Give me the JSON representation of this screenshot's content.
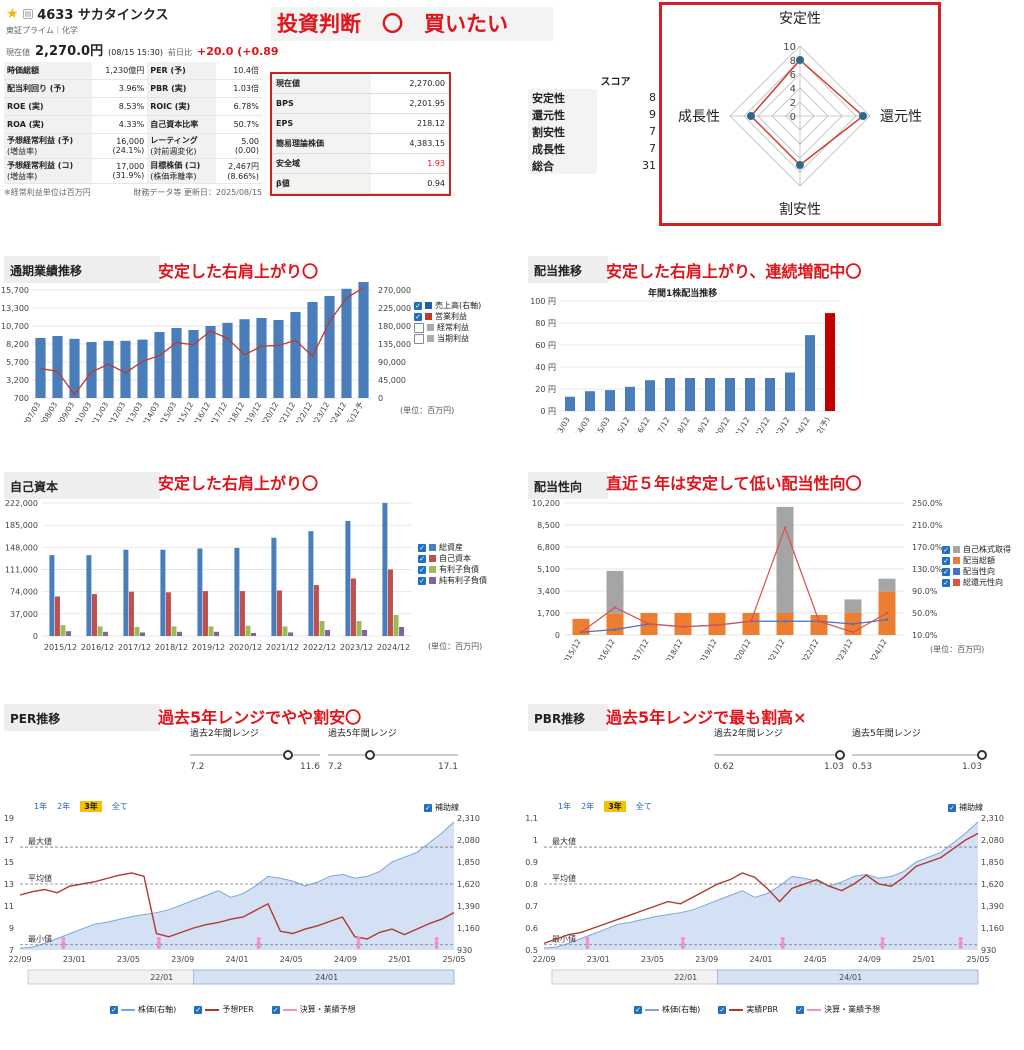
{
  "header": {
    "star_icon": "star-icon",
    "ticker_name": "4633 サカタインクス",
    "market": "東証プライム｜化学",
    "price_label": "現在値",
    "price": "2,270.0円",
    "time": "(08/15 15:30)",
    "change_label": "前日比",
    "change": "+20.0 (+0.89"
  },
  "metrics": {
    "rows": [
      {
        "k1": "時価総額",
        "s1": "",
        "v1": "1,230億円",
        "k2": "PER",
        "s2": "(予)",
        "v2": "10.4倍"
      },
      {
        "k1": "配当利回り",
        "s1": "(予)",
        "v1": "3.96%",
        "k2": "PBR",
        "s2": "(実)",
        "v2": "1.03倍"
      },
      {
        "k1": "ROE",
        "s1": "(実)",
        "v1": "8.53%",
        "k2": "ROIC",
        "s2": "(実)",
        "v2": "6.78%"
      },
      {
        "k1": "ROA",
        "s1": "(実)",
        "v1": "4.33%",
        "k2": "自己資本比率",
        "s2": "",
        "v2": "50.7%"
      },
      {
        "k1": "予想経常利益",
        "s1": "(予)",
        "sub1": "(増益率)",
        "v1": "16,000",
        "vv1": "(24.1%)",
        "k2": "レーティング",
        "sub2": "(対前週変化)",
        "v2": "5.00",
        "vv2": "(0.00)"
      },
      {
        "k1": "予想経常利益",
        "s1": "(コ)",
        "sub1": "(増益率)",
        "v1": "17,000",
        "vv1": "(31.9%)",
        "k2": "目標株価",
        "s2": "(コ)",
        "sub2": "(株価乖離率)",
        "v2": "2,467円",
        "vv2": "(8.66%)"
      }
    ],
    "note": "※経常利益単位は百万円",
    "updated": "財務データ等 更新日：2025/08/15"
  },
  "judgement": {
    "title": "投資判断　〇　買いたい"
  },
  "valuation": [
    {
      "k": "現在値",
      "v": "2,270.00"
    },
    {
      "k": "BPS",
      "v": "2,201.95"
    },
    {
      "k": "EPS",
      "v": "218.12"
    },
    {
      "k": "簡易理論株価",
      "v": "4,383.15"
    },
    {
      "k": "安全域",
      "v": "1.93",
      "red": true
    },
    {
      "k": "β値",
      "v": "0.94"
    }
  ],
  "score": {
    "header": "スコア",
    "rows": [
      {
        "k": "安定性",
        "v": "8"
      },
      {
        "k": "還元性",
        "v": "9"
      },
      {
        "k": "割安性",
        "v": "7"
      },
      {
        "k": "成長性",
        "v": "7"
      },
      {
        "k": "総合",
        "v": "31"
      }
    ]
  },
  "radar": {
    "axes": [
      "安定性",
      "還元性",
      "割安性",
      "成長性"
    ],
    "values": [
      8,
      9,
      7,
      7
    ],
    "max": 10,
    "ticks": [
      "10",
      "8",
      "6",
      "4",
      "2",
      "0"
    ]
  },
  "sections": {
    "perf": {
      "label": "通期業績推移",
      "comment": "安定した右肩上がり〇",
      "unit": "(単位：百万円)"
    },
    "div": {
      "label": "配当推移",
      "comment": "安定した右肩上がり、連続増配中〇",
      "chart_title": "年間1株配当推移"
    },
    "equity": {
      "label": "自己資本",
      "comment": "安定した右肩上がり〇",
      "unit": "(単位：百万円)"
    },
    "payout": {
      "label": "配当性向",
      "comment": "直近５年は安定して低い配当性向〇",
      "unit": "(単位：百万円)"
    },
    "per": {
      "label": "PER推移",
      "comment": "過去5年レンジでやや割安〇"
    },
    "pbr": {
      "label": "PBR推移",
      "comment": "過去5年レンジで最も割高×"
    }
  },
  "chart_data": [
    {
      "type": "bar",
      "name": "perf",
      "categories": [
        "2007/03",
        "2008/03",
        "2009/03",
        "2010/03",
        "2011/03",
        "2012/03",
        "2013/03",
        "2014/03",
        "2015/03",
        "2015/12",
        "2016/12",
        "2017/12",
        "2018/12",
        "2019/12",
        "2020/12",
        "2021/12",
        "2022/12",
        "2023/12",
        "2024/12",
        "2025/12予"
      ],
      "series": [
        {
          "name": "売上高(右軸)",
          "values": [
            150000,
            155000,
            148000,
            140000,
            143000,
            143000,
            146000,
            165000,
            175000,
            170000,
            180000,
            188000,
            197000,
            200000,
            195000,
            215000,
            240000,
            255000,
            273000,
            290000
          ],
          "axis": "right",
          "color": "#4a7ebb"
        },
        {
          "name": "営業利益",
          "values": [
            4800,
            4400,
            1200,
            4300,
            5400,
            4200,
            5800,
            6600,
            8400,
            8100,
            10000,
            9000,
            6700,
            7900,
            8000,
            8700,
            6500,
            11300,
            14600,
            16000
          ],
          "axis": "left",
          "color": "#c0392b"
        }
      ],
      "legend": [
        "売上高(右軸)",
        "営業利益",
        "経常利益",
        "当期利益"
      ],
      "left_ticks": [
        "15,700",
        "13,300",
        "10,700",
        "8,200",
        "5,700",
        "3,200",
        "700"
      ],
      "right_ticks": [
        "270,000",
        "225,000",
        "180,000",
        "135,000",
        "90,000",
        "45,000",
        "0"
      ],
      "ylim": [
        700,
        15700
      ],
      "ylim_right": [
        0,
        270000
      ]
    },
    {
      "type": "bar",
      "name": "dividend",
      "title": "年間1株配当推移",
      "categories": [
        "13/03",
        "14/03",
        "15/03",
        "15/12",
        "16/12",
        "17/12",
        "18/12",
        "19/12",
        "20/12",
        "21/12",
        "22/12",
        "23/12",
        "24/12",
        "25/12(予)"
      ],
      "values": [
        13,
        18,
        19,
        22,
        28,
        30,
        30,
        30,
        30,
        30,
        30,
        35,
        69,
        89
      ],
      "ticks": [
        "100 円",
        "80 円",
        "60 円",
        "40 円",
        "20 円",
        "0 円"
      ],
      "ylim": [
        0,
        100
      ]
    },
    {
      "type": "bar",
      "name": "equity",
      "categories": [
        "2015/12",
        "2016/12",
        "2017/12",
        "2018/12",
        "2019/12",
        "2020/12",
        "2021/12",
        "2022/12",
        "2023/12",
        "2024/12"
      ],
      "series": [
        {
          "name": "総資産",
          "values": [
            135000,
            135000,
            144000,
            144000,
            146000,
            147000,
            164000,
            175000,
            192000,
            222000
          ],
          "color": "#4a7ebb"
        },
        {
          "name": "自己資本",
          "values": [
            66000,
            70000,
            74000,
            73000,
            75000,
            75000,
            76000,
            85000,
            96000,
            111000
          ],
          "color": "#c0504d"
        },
        {
          "name": "有利子負債",
          "values": [
            18000,
            16000,
            15000,
            16000,
            16000,
            17000,
            16000,
            25000,
            25000,
            35000
          ],
          "color": "#9bbb59"
        },
        {
          "name": "純有利子負債",
          "values": [
            8000,
            7000,
            6000,
            7000,
            7000,
            5000,
            6000,
            10000,
            10000,
            15000
          ],
          "color": "#8064a2"
        }
      ],
      "ticks": [
        "222,000",
        "185,000",
        "148,000",
        "111,000",
        "74,000",
        "37,000",
        "0"
      ],
      "ylim": [
        0,
        222000
      ]
    },
    {
      "type": "bar",
      "name": "payout",
      "categories": [
        "2015/12",
        "2016/12",
        "2017/12",
        "2018/12",
        "2019/12",
        "2020/12",
        "2021/12",
        "2022/12",
        "2023/12",
        "2024/12"
      ],
      "series": [
        {
          "name": "自己株式取得",
          "values": [
            0,
            3300,
            0,
            0,
            0,
            0,
            8200,
            0,
            1000,
            1000
          ],
          "color": "#a5a5a5"
        },
        {
          "name": "配当総額",
          "values": [
            1250,
            1650,
            1700,
            1700,
            1700,
            1700,
            1700,
            1550,
            1750,
            3350
          ],
          "color": "#ed7d31"
        },
        {
          "name": "配当性向",
          "values": [
            15,
            20,
            30,
            25,
            28,
            35,
            35,
            35,
            30,
            38
          ],
          "color": "#4472c4"
        },
        {
          "name": "総還元性向",
          "values": [
            15,
            60,
            30,
            25,
            28,
            35,
            205,
            35,
            15,
            50
          ],
          "color": "#d9534f"
        }
      ],
      "legend": [
        "自己株式取得",
        "配当総額",
        "配当性向",
        "総還元性向"
      ],
      "left_ticks": [
        "10,200",
        "8,500",
        "6,800",
        "5,100",
        "3,400",
        "1,700",
        "0"
      ],
      "right_ticks": [
        "250.0%",
        "210.0%",
        "170.0%",
        "130.0%",
        "90.0%",
        "50.0%",
        "10.0%"
      ],
      "ylim": [
        0,
        10200
      ],
      "ylim_right": [
        10,
        250
      ]
    },
    {
      "type": "line",
      "name": "per",
      "range2": {
        "label": "過去2年間レンジ",
        "min": "7.2",
        "max": "11.6",
        "pos": 0.75
      },
      "range5": {
        "label": "過去5年間レンジ",
        "min": "7.2",
        "max": "17.1",
        "pos": 0.32
      },
      "tabs": [
        "1年",
        "2年",
        "3年",
        "全て"
      ],
      "active_tab": "3年",
      "aux_label": "補助線",
      "left_ticks": [
        "19",
        "17",
        "15",
        "13",
        "11",
        "9",
        "7"
      ],
      "right_ticks": [
        "2,310",
        "2,080",
        "1,850",
        "1,620",
        "1,390",
        "1,160",
        "930"
      ],
      "x_ticks": [
        "22/09",
        "23/01",
        "23/05",
        "23/09",
        "24/01",
        "24/05",
        "24/09",
        "25/01",
        "25/05"
      ],
      "ref_lines": [
        "最大値",
        "平均値",
        "最小値"
      ],
      "nav_labels": [
        "22/01",
        "24/01"
      ],
      "legend": [
        "株価(右軸)",
        "予想PER",
        "決算・業績予想"
      ],
      "ylim": [
        7,
        19
      ],
      "per_series": [
        12.0,
        12.3,
        12.5,
        12.2,
        12.8,
        13.0,
        13.2,
        13.5,
        13.8,
        14.0,
        13.7,
        8.5,
        8.2,
        8.6,
        9.0,
        9.3,
        9.5,
        9.8,
        10.0,
        10.6,
        11.2,
        8.7,
        8.5,
        8.9,
        9.2,
        9.6,
        10.0,
        8.2,
        8.0,
        8.6,
        8.9,
        8.4,
        8.9,
        9.4,
        9.8,
        10.4
      ],
      "price_series": [
        950,
        960,
        1000,
        1050,
        1100,
        1150,
        1200,
        1220,
        1250,
        1280,
        1300,
        1320,
        1350,
        1400,
        1450,
        1500,
        1550,
        1480,
        1520,
        1600,
        1700,
        1680,
        1650,
        1600,
        1640,
        1700,
        1720,
        1680,
        1700,
        1750,
        1850,
        1900,
        1950,
        2050,
        2150,
        2270
      ]
    },
    {
      "type": "line",
      "name": "pbr",
      "range2": {
        "label": "過去2年間レンジ",
        "min": "0.62",
        "max": "1.03",
        "pos": 0.97
      },
      "range5": {
        "label": "過去5年間レンジ",
        "min": "0.53",
        "max": "1.03",
        "pos": 1.0
      },
      "tabs": [
        "1年",
        "2年",
        "3年",
        "全て"
      ],
      "active_tab": "3年",
      "aux_label": "補助線",
      "left_ticks": [
        "1.1",
        "1",
        "0.9",
        "0.8",
        "0.7",
        "0.6",
        "0.5"
      ],
      "right_ticks": [
        "2,310",
        "2,080",
        "1,850",
        "1,620",
        "1,390",
        "1,160",
        "930"
      ],
      "x_ticks": [
        "22/09",
        "23/01",
        "23/05",
        "23/09",
        "24/01",
        "24/05",
        "24/09",
        "25/01",
        "25/05"
      ],
      "ref_lines": [
        "最大値",
        "平均値",
        "最小値"
      ],
      "nav_labels": [
        "22/01",
        "24/01"
      ],
      "legend": [
        "株価(右軸)",
        "実績PBR",
        "決算・業績予想"
      ],
      "ylim": [
        0.5,
        1.1
      ],
      "pbr_series": [
        0.53,
        0.55,
        0.57,
        0.58,
        0.6,
        0.62,
        0.64,
        0.66,
        0.68,
        0.7,
        0.72,
        0.71,
        0.74,
        0.77,
        0.8,
        0.82,
        0.85,
        0.83,
        0.78,
        0.72,
        0.78,
        0.8,
        0.82,
        0.79,
        0.77,
        0.8,
        0.84,
        0.8,
        0.79,
        0.83,
        0.88,
        0.9,
        0.92,
        0.96,
        1.0,
        1.03
      ],
      "price_series": [
        950,
        960,
        1000,
        1050,
        1100,
        1150,
        1200,
        1220,
        1250,
        1280,
        1300,
        1320,
        1350,
        1400,
        1450,
        1500,
        1550,
        1480,
        1520,
        1600,
        1700,
        1680,
        1650,
        1600,
        1640,
        1700,
        1720,
        1680,
        1700,
        1750,
        1850,
        1900,
        1950,
        2050,
        2150,
        2270
      ]
    }
  ]
}
